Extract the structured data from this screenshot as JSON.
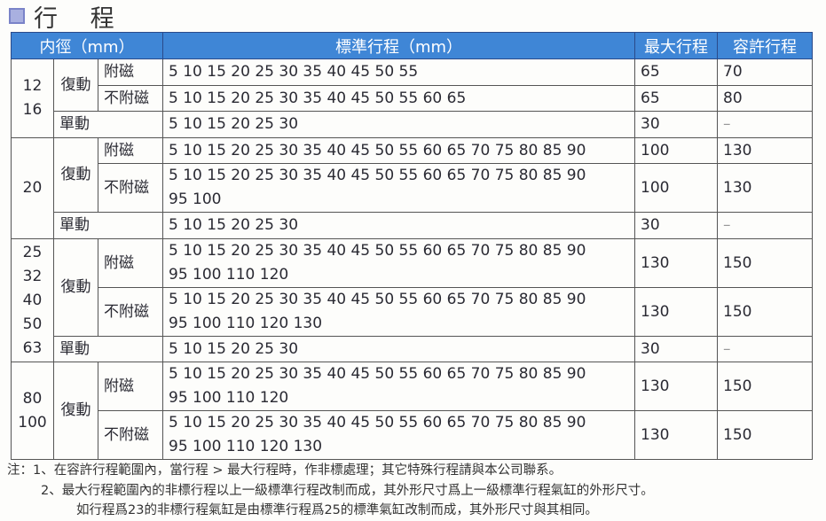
{
  "title": "行 程",
  "headers": {
    "bore": "内徑（mm）",
    "standard": "標準行程（mm）",
    "max": "最大行程",
    "allow": "容許行程"
  },
  "groups": [
    {
      "bore": [
        "12",
        "16"
      ],
      "double": "復動",
      "rows": [
        {
          "sub": "附磁",
          "std": [
            "5 10 15 20 25 30 35 40 45 50 55"
          ],
          "max": "65",
          "allow": "70"
        },
        {
          "sub": "不附磁",
          "std": [
            "5 10 15 20 25 30 35 40 45 50 55 60 65"
          ],
          "max": "65",
          "allow": "80"
        }
      ],
      "single": {
        "label": "單動",
        "std": "5 10 15 20 25 30",
        "max": "30",
        "allow": "–"
      }
    },
    {
      "bore": [
        "20"
      ],
      "double": "復動",
      "rows": [
        {
          "sub": "附磁",
          "std": [
            "5 10 15 20 25 30 35 40 45 50 55 60 65 70 75 80 85 90"
          ],
          "max": "100",
          "allow": "130"
        },
        {
          "sub": "不附磁",
          "std": [
            "5 10 15 20 25 30 35 40 45 50 55 60 65 70 75 80 85 90",
            "95 100"
          ],
          "max": "100",
          "allow": "130"
        }
      ],
      "single": {
        "label": "單動",
        "std": "5 10 15 20 25 30",
        "max": "30",
        "allow": "–"
      }
    },
    {
      "bore": [
        "25",
        "32",
        "40",
        "50",
        "63"
      ],
      "double": "復動",
      "rows": [
        {
          "sub": "附磁",
          "std": [
            "5 10 15 20 25 30 35 40 45 50 55 60 65 70 75 80 85 90",
            "95 100 110 120"
          ],
          "max": "130",
          "allow": "150"
        },
        {
          "sub": "不附磁",
          "std": [
            "5 10 15 20 25 30 35 40 45 50 55 60 65 70 75 80 85 90",
            "95 100 110 120 130"
          ],
          "max": "130",
          "allow": "150"
        }
      ],
      "single": {
        "label": "單動",
        "std": "5 10 15 20 25 30",
        "max": "30",
        "allow": "–"
      }
    },
    {
      "bore": [
        "80",
        "100"
      ],
      "double": "復動",
      "rows": [
        {
          "sub": "附磁",
          "std": [
            "5 10 15 20 25 30 35 40 45 50 55 60 65 70 75 80 85 90",
            "95 100 110 120"
          ],
          "max": "130",
          "allow": "150"
        },
        {
          "sub": "不附磁",
          "std": [
            "5 10 15 20 25 30 35 40 45 50 55 60 65 70 75 80 85 90",
            "95 100 110 120 130"
          ],
          "max": "130",
          "allow": "150"
        }
      ]
    }
  ],
  "notes": [
    "注：1、在容許行程範圍內，當行程 > 最大行程時，作非標處理；其它特殊行程請與本公司聯系。",
    "2、最大行程範圍內的非標行程以上一級標準行程改制而成，其外形尺寸爲上一級標準行程氣缸的外形尺寸。",
    "如行程爲23的非標行程氣缸是由標準行程爲25的標準氣缸改制而成，其外形尺寸與其相同。"
  ]
}
